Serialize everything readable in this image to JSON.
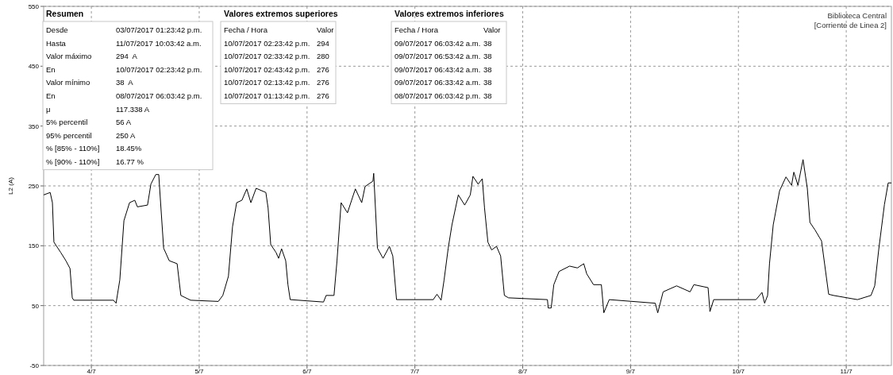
{
  "chart_data": {
    "type": "line",
    "title": "Biblioteca Central",
    "subtitle": "[Corriente de Linea 2]",
    "ylabel": "L2 (A)",
    "color": "#000000",
    "grid": true,
    "x": [
      "2017-07-03T13:23",
      "2017-07-03T14:50",
      "2017-07-03T15:20",
      "2017-07-03T15:40",
      "2017-07-03T17:10",
      "2017-07-03T18:20",
      "2017-07-03T19:15",
      "2017-07-03T19:45",
      "2017-07-03T20:05",
      "2017-07-04T04:55",
      "2017-07-04T05:30",
      "2017-07-04T06:20",
      "2017-07-04T07:15",
      "2017-07-04T08:30",
      "2017-07-04T09:40",
      "2017-07-04T10:15",
      "2017-07-04T12:30",
      "2017-07-04T13:15",
      "2017-07-04T14:20",
      "2017-07-04T15:00",
      "2017-07-04T15:10",
      "2017-07-04T16:05",
      "2017-07-04T17:20",
      "2017-07-04T19:05",
      "2017-07-04T19:55",
      "2017-07-04T22:05",
      "2017-07-05T04:15",
      "2017-07-05T05:15",
      "2017-07-05T06:30",
      "2017-07-05T07:25",
      "2017-07-05T08:20",
      "2017-07-05T09:30",
      "2017-07-05T10:35",
      "2017-07-05T11:30",
      "2017-07-05T12:40",
      "2017-07-05T14:50",
      "2017-07-05T15:20",
      "2017-07-05T15:55",
      "2017-07-05T17:05",
      "2017-07-05T17:40",
      "2017-07-05T18:20",
      "2017-07-05T19:15",
      "2017-07-05T19:45",
      "2017-07-05T20:15",
      "2017-07-06T03:40",
      "2017-07-06T04:15",
      "2017-07-06T06:00",
      "2017-07-06T06:40",
      "2017-07-06T07:35",
      "2017-07-06T09:00",
      "2017-07-06T09:55",
      "2017-07-06T10:45",
      "2017-07-06T12:10",
      "2017-07-06T12:55",
      "2017-07-06T14:40",
      "2017-07-06T14:50",
      "2017-07-06T15:40",
      "2017-07-06T16:55",
      "2017-07-06T18:20",
      "2017-07-06T19:05",
      "2017-07-06T19:55",
      "2017-07-07T04:05",
      "2017-07-07T04:55",
      "2017-07-07T05:50",
      "2017-07-07T06:30",
      "2017-07-07T07:25",
      "2017-07-07T08:15",
      "2017-07-07T09:40",
      "2017-07-07T11:05",
      "2017-07-07T12:20",
      "2017-07-07T12:55",
      "2017-07-07T14:05",
      "2017-07-07T15:00",
      "2017-07-07T15:30",
      "2017-07-07T16:15",
      "2017-07-07T17:05",
      "2017-07-07T18:10",
      "2017-07-07T19:05",
      "2017-07-07T19:55",
      "2017-07-07T20:50",
      "2017-07-08T05:30",
      "2017-07-08T05:40",
      "2017-07-08T06:20",
      "2017-07-08T06:55",
      "2017-07-08T08:05",
      "2017-07-08T10:25",
      "2017-07-08T12:10",
      "2017-07-08T13:35",
      "2017-07-08T14:15",
      "2017-07-08T15:45",
      "2017-07-08T17:30",
      "2017-07-08T18:03",
      "2017-07-08T19:15",
      "2017-07-09T05:30",
      "2017-07-09T06:03",
      "2017-07-09T07:15",
      "2017-07-09T10:15",
      "2017-07-09T13:15",
      "2017-07-09T14:05",
      "2017-07-09T17:15",
      "2017-07-09T17:40",
      "2017-07-09T18:30",
      "2017-07-10T03:55",
      "2017-07-10T05:15",
      "2017-07-10T05:50",
      "2017-07-10T06:30",
      "2017-07-10T06:55",
      "2017-07-10T07:45",
      "2017-07-10T09:10",
      "2017-07-10T10:35",
      "2017-07-10T11:50",
      "2017-07-10T12:20",
      "2017-07-10T13:15",
      "2017-07-10T14:23",
      "2017-07-10T15:20",
      "2017-07-10T15:55",
      "2017-07-10T17:05",
      "2017-07-10T18:30",
      "2017-07-10T20:05",
      "2017-07-10T21:10",
      "2017-07-11T02:30",
      "2017-07-11T05:30",
      "2017-07-11T06:20",
      "2017-07-11T07:15",
      "2017-07-11T08:30",
      "2017-07-11T09:20",
      "2017-07-11T10:03"
    ],
    "values": [
      235,
      239,
      222,
      156,
      139,
      125,
      112,
      63,
      59,
      59,
      54,
      93,
      192,
      222,
      226,
      215,
      218,
      253,
      269,
      269,
      249,
      146,
      125,
      120,
      67,
      59,
      57,
      67,
      99,
      182,
      222,
      226,
      245,
      222,
      246,
      239,
      213,
      152,
      139,
      129,
      145,
      125,
      85,
      60,
      56,
      67,
      67,
      125,
      222,
      205,
      226,
      245,
      222,
      249,
      258,
      271,
      146,
      129,
      149,
      133,
      60,
      60,
      69,
      59,
      93,
      146,
      185,
      235,
      218,
      235,
      266,
      253,
      262,
      213,
      156,
      143,
      149,
      133,
      67,
      63,
      60,
      46,
      46,
      85,
      107,
      116,
      113,
      120,
      103,
      85,
      85,
      38,
      60,
      54,
      38,
      73,
      83,
      73,
      85,
      80,
      40,
      60,
      60,
      72,
      54,
      67,
      120,
      185,
      242,
      265,
      251,
      273,
      251,
      294,
      246,
      189,
      176,
      158,
      69,
      67,
      60,
      67,
      83,
      145,
      219,
      255,
      255
    ],
    "xlim": [
      "2017-07-03T13:23",
      "2017-07-11T10:03"
    ],
    "xticks": [
      {
        "value": "2017-07-04",
        "label": "4/7"
      },
      {
        "value": "2017-07-05",
        "label": "5/7"
      },
      {
        "value": "2017-07-06",
        "label": "6/7"
      },
      {
        "value": "2017-07-07",
        "label": "7/7"
      },
      {
        "value": "2017-07-08",
        "label": "8/7"
      },
      {
        "value": "2017-07-09",
        "label": "9/7"
      },
      {
        "value": "2017-07-10",
        "label": "10/7"
      },
      {
        "value": "2017-07-11",
        "label": "11/7"
      }
    ],
    "ylim": [
      -50,
      550
    ],
    "yticks": [
      -50,
      50,
      150,
      250,
      350,
      450,
      550
    ],
    "annotations": [
      "Resumen",
      "Desde",
      "03/07/2017 01:23:42 p.m.",
      "Hasta",
      "11/07/2017 10:03:42 a.m.",
      "Valor máximo",
      "294  A",
      "En",
      "10/07/2017 02:23:42 p.m.",
      "Valor mínimo",
      "38  A",
      "En",
      "08/07/2017 06:03:42 p.m.",
      "μ",
      "117.338 A",
      "5% percentil",
      "56 A",
      "95% percentil",
      "250 A",
      "% [85% - 110%]",
      "18.45%",
      "% [90% - 110%]",
      "16.77 %",
      "Valores extremos superiores",
      "Fecha / Hora",
      "Valor",
      "10/07/2017 02:23:42 p.m.",
      "294",
      "10/07/2017 02:33:42 p.m.",
      "280",
      "10/07/2017 02:43:42 p.m.",
      "276",
      "10/07/2017 02:13:42 p.m.",
      "276",
      "10/07/2017 01:13:42 p.m.",
      "276",
      "Valores extremos inferiores",
      "Fecha / Hora",
      "Valor",
      "09/07/2017 06:03:42 a.m.",
      "38",
      "09/07/2017 06:53:42 a.m.",
      "38",
      "09/07/2017 06:43:42 a.m.",
      "38",
      "09/07/2017 06:33:42 a.m.",
      "38",
      "08/07/2017 06:03:42 p.m.",
      "38"
    ]
  }
}
